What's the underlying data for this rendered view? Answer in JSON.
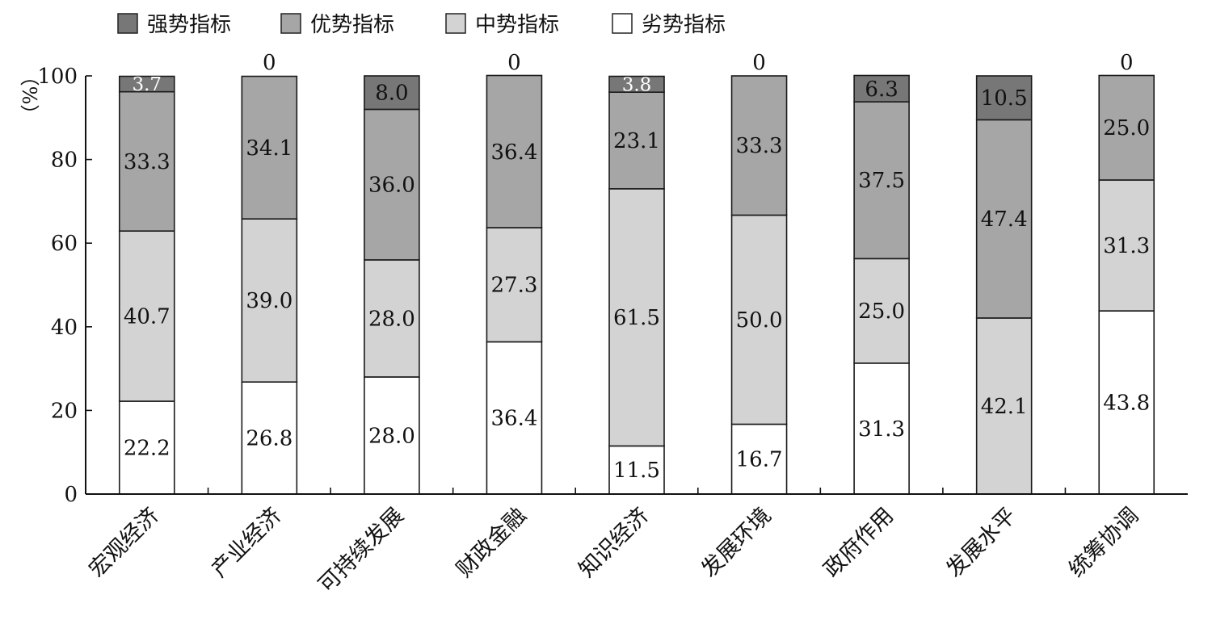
{
  "chart_data": {
    "type": "bar",
    "stacked": true,
    "title": "",
    "xlabel": "",
    "ylabel": "（%）",
    "ylim": [
      0,
      100
    ],
    "yticks": [
      0,
      20,
      40,
      60,
      80,
      100
    ],
    "legend_position": "top",
    "grid": false,
    "categories": [
      "宏观经济",
      "产业经济",
      "可持续发展",
      "财政金融",
      "知识经济",
      "发展环境",
      "政府作用",
      "发展水平",
      "统筹协调"
    ],
    "series": [
      {
        "name": "劣势指标",
        "color": "#ffffff",
        "values": [
          22.2,
          26.8,
          28.0,
          36.4,
          11.5,
          16.7,
          31.3,
          0,
          43.8
        ]
      },
      {
        "name": "中势指标",
        "color": "#d3d3d3",
        "values": [
          40.7,
          39.0,
          28.0,
          27.3,
          61.5,
          50.0,
          25.0,
          42.1,
          31.3
        ]
      },
      {
        "name": "优势指标",
        "color": "#a6a6a6",
        "values": [
          33.3,
          34.1,
          36.0,
          36.4,
          23.1,
          33.3,
          37.5,
          47.4,
          25.0
        ]
      },
      {
        "name": "强势指标",
        "color": "#777777",
        "values": [
          3.7,
          0,
          8.0,
          0,
          3.8,
          0,
          6.3,
          10.5,
          0
        ]
      }
    ],
    "legend_order": [
      "强势指标",
      "优势指标",
      "中势指标",
      "劣势指标"
    ]
  }
}
